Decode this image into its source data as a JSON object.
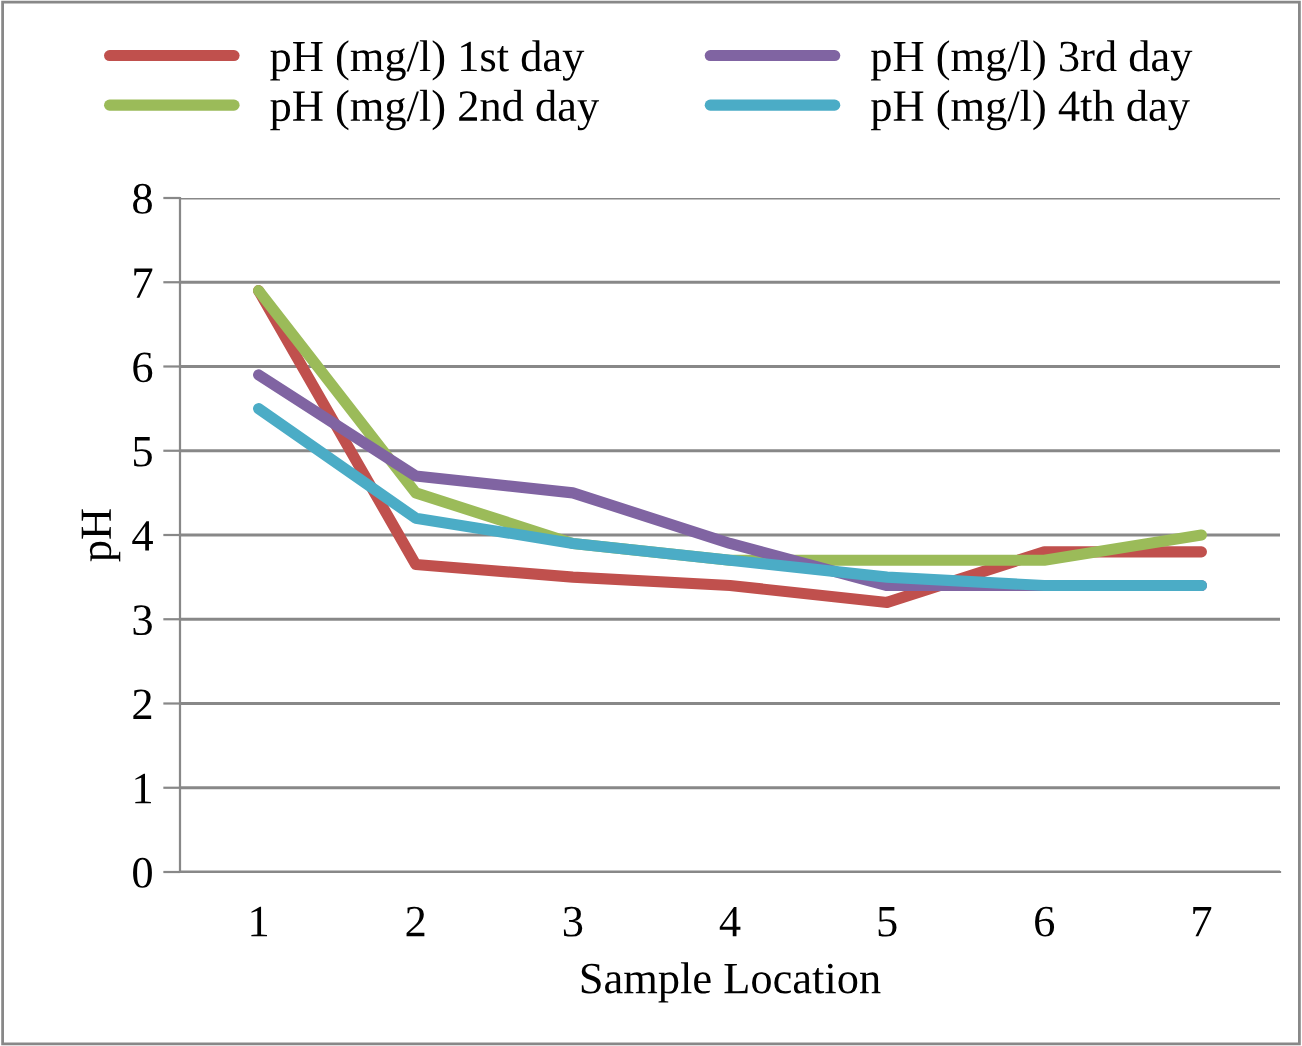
{
  "chart_data": {
    "type": "line",
    "xlabel": "Sample Location",
    "ylabel": "pH",
    "categories": [
      "1",
      "2",
      "3",
      "4",
      "5",
      "6",
      "7"
    ],
    "series": [
      {
        "name": "pH (mg/l) 1st day",
        "color": "#c0504d",
        "values": [
          6.9,
          3.65,
          3.5,
          3.4,
          3.2,
          3.8,
          3.8
        ]
      },
      {
        "name": "pH (mg/l) 2nd day",
        "color": "#9bbb59",
        "values": [
          6.9,
          4.5,
          3.9,
          3.7,
          3.7,
          3.7,
          4.0
        ]
      },
      {
        "name": "pH (mg/l) 3rd day",
        "color": "#8064a2",
        "values": [
          5.9,
          4.7,
          4.5,
          3.9,
          3.4,
          3.4,
          3.4
        ]
      },
      {
        "name": "pH (mg/l) 4th day",
        "color": "#4bacc6",
        "values": [
          5.5,
          4.2,
          3.9,
          3.7,
          3.5,
          3.4,
          3.4
        ]
      }
    ],
    "ylim": [
      0,
      8
    ],
    "yticks": [
      0,
      1,
      2,
      3,
      4,
      5,
      6,
      7,
      8
    ],
    "grid": "y",
    "legend": "top",
    "marker": "none",
    "line_style": "solid"
  }
}
